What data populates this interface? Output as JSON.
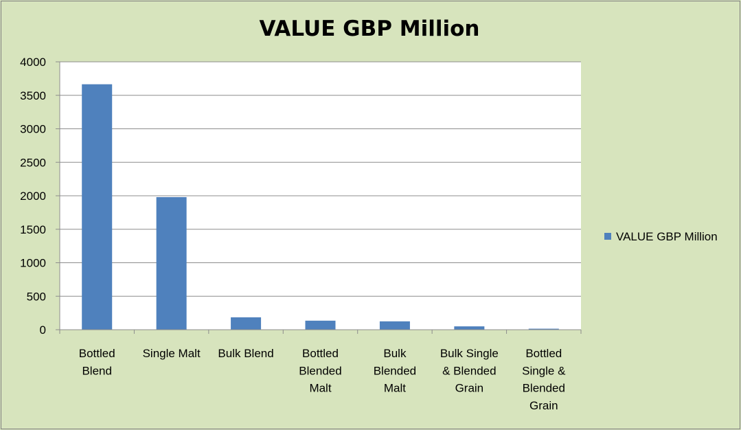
{
  "chart_data": {
    "type": "bar",
    "title": "VALUE GBP Million",
    "categories": [
      [
        "Bottled",
        "Blend"
      ],
      [
        "Single Malt"
      ],
      [
        "Bulk Blend"
      ],
      [
        "Bottled",
        "Blended",
        "Malt"
      ],
      [
        "Bulk",
        "Blended",
        "Malt"
      ],
      [
        "Bulk Single",
        "& Blended",
        "Grain"
      ],
      [
        "Bottled",
        "Single &",
        "Blended",
        "Grain"
      ]
    ],
    "series": [
      {
        "name": "VALUE GBP Million",
        "values": [
          3665,
          1980,
          185,
          135,
          125,
          50,
          15
        ],
        "color": "#4f81bd"
      }
    ],
    "ylim": [
      0,
      4000
    ],
    "yticks": [
      0,
      500,
      1000,
      1500,
      2000,
      2500,
      3000,
      3500,
      4000
    ],
    "grid": true,
    "legend": "right"
  }
}
